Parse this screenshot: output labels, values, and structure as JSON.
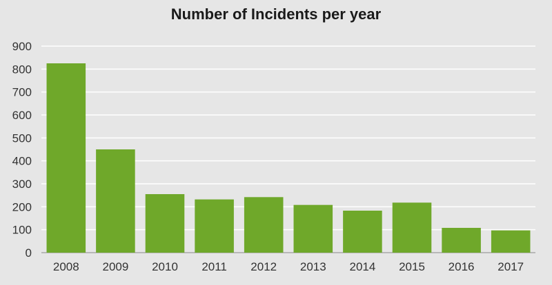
{
  "chart_data": {
    "type": "bar",
    "title": "Number of Incidents per year",
    "categories": [
      "2008",
      "2009",
      "2010",
      "2011",
      "2012",
      "2013",
      "2014",
      "2015",
      "2016",
      "2017"
    ],
    "values": [
      825,
      450,
      255,
      232,
      242,
      208,
      183,
      218,
      108,
      97
    ],
    "xlabel": "",
    "ylabel": "",
    "ylim": [
      0,
      900
    ],
    "yticks": [
      0,
      100,
      200,
      300,
      400,
      500,
      600,
      700,
      800,
      900
    ],
    "grid": true,
    "legend": "none",
    "colors": {
      "bar": "#6fa82a",
      "background": "#e6e6e6",
      "grid": "#ffffff",
      "text": "#333333"
    }
  }
}
